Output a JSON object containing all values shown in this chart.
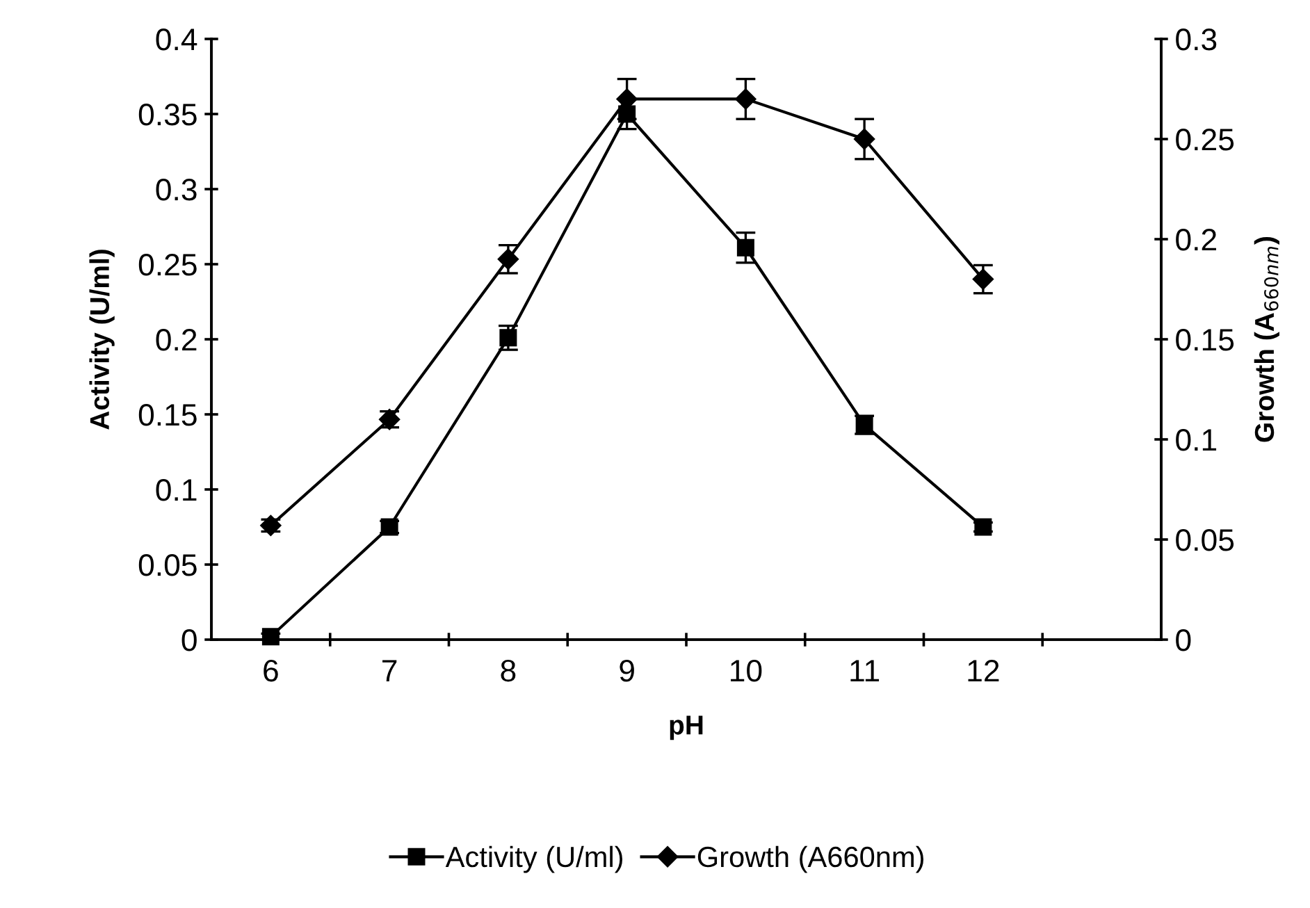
{
  "chart_data": {
    "type": "line",
    "xlabel": "pH",
    "ylabel": "Activity (U/ml)",
    "y2label": "Growth (A$_{660nm}$)",
    "categories": [
      "6",
      "7",
      "8",
      "9",
      "10",
      "11",
      "12",
      null
    ],
    "series": [
      {
        "name": "Activity (U/ml)",
        "color": "#000000",
        "marker": "square",
        "values": [
          0.002,
          0.075,
          0.201,
          0.35,
          0.261,
          0.143,
          0.075,
          null
        ],
        "errors": [
          0.002,
          0.004,
          0.008,
          0.01,
          0.01,
          0.006,
          0.003,
          null
        ]
      },
      {
        "name": "Growth (A660nm)",
        "color": "#000000",
        "marker": "diamond",
        "axis": "y2",
        "values": [
          0.057,
          0.11,
          0.19,
          0.27,
          0.27,
          0.25,
          0.18,
          null
        ],
        "errors": [
          0.003,
          0.004,
          0.007,
          0.01,
          0.01,
          0.01,
          0.007,
          null
        ]
      }
    ],
    "ylim": [
      0,
      0.4
    ],
    "yticks": [
      0,
      0.05,
      0.1,
      0.15,
      0.2,
      0.25,
      0.3,
      0.35,
      0.4
    ],
    "y2lim": [
      0,
      0.3
    ],
    "y2ticks": [
      0,
      0.05,
      0.1,
      0.15,
      0.2,
      0.25,
      0.3
    ],
    "grid": false,
    "legend": "bottom",
    "line_style": "solid"
  }
}
